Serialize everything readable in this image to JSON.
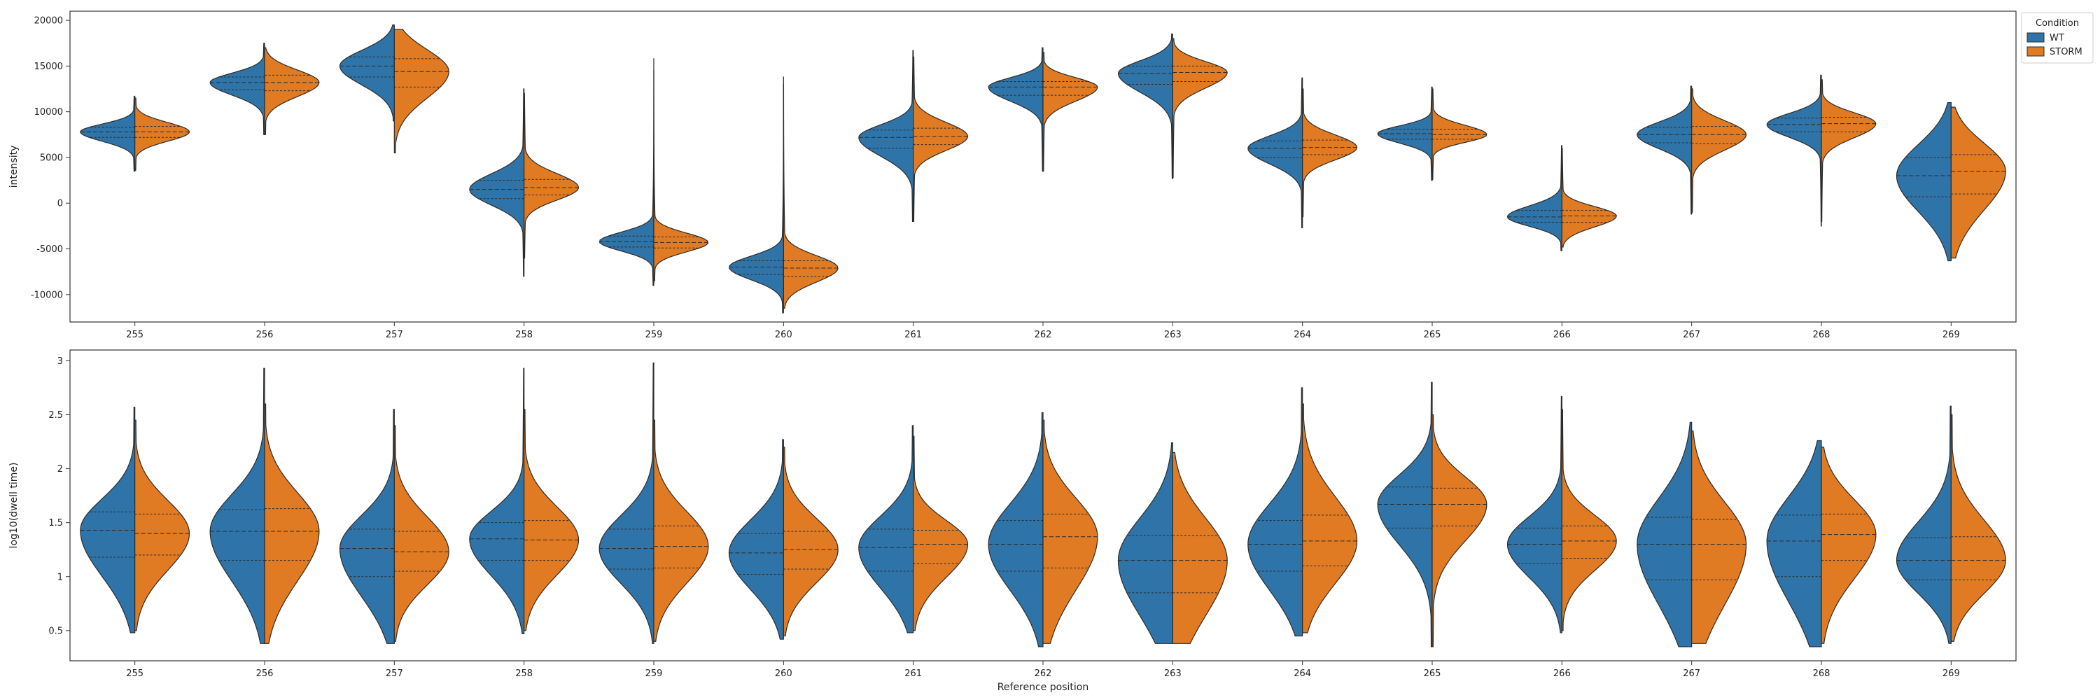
{
  "colors": {
    "wt": "#2f74a8",
    "storm": "#e07b24",
    "outline": "#2b2b2b",
    "frame": "#333333"
  },
  "legend": {
    "title": "Condition",
    "items": [
      "WT",
      "STORM"
    ]
  },
  "chart_data": [
    {
      "type": "violin",
      "split": true,
      "xlabel": "",
      "ylabel": "intensity",
      "ylim": [
        -13000,
        21000
      ],
      "yticks": [
        -10000,
        -5000,
        0,
        5000,
        10000,
        15000,
        20000
      ],
      "categories": [
        "255",
        "256",
        "257",
        "258",
        "259",
        "260",
        "261",
        "262",
        "263",
        "264",
        "265",
        "266",
        "267",
        "268",
        "269"
      ],
      "series": [
        {
          "name": "WT",
          "violins": [
            {
              "min": 3500,
              "max": 11700,
              "q1": 7200,
              "median": 7800,
              "q3": 8300
            },
            {
              "min": 7500,
              "max": 17500,
              "q1": 12400,
              "median": 13200,
              "q3": 13800
            },
            {
              "min": 9000,
              "max": 19500,
              "q1": 13800,
              "median": 15000,
              "q3": 16000
            },
            {
              "min": -8000,
              "max": 12500,
              "q1": 500,
              "median": 1500,
              "q3": 2500
            },
            {
              "min": -9000,
              "max": 15800,
              "q1": -4800,
              "median": -4200,
              "q3": -3600
            },
            {
              "min": -12000,
              "max": 13800,
              "q1": -7800,
              "median": -7000,
              "q3": -6300
            },
            {
              "min": -2000,
              "max": 16700,
              "q1": 6000,
              "median": 7200,
              "q3": 8000
            },
            {
              "min": 3500,
              "max": 17000,
              "q1": 11800,
              "median": 12700,
              "q3": 13300
            },
            {
              "min": 2700,
              "max": 18500,
              "q1": 13000,
              "median": 14200,
              "q3": 15000
            },
            {
              "min": -2700,
              "max": 13700,
              "q1": 5000,
              "median": 6000,
              "q3": 6800
            },
            {
              "min": 2500,
              "max": 12700,
              "q1": 7000,
              "median": 7600,
              "q3": 8100
            },
            {
              "min": -5200,
              "max": 6300,
              "q1": -2100,
              "median": -1500,
              "q3": -800
            },
            {
              "min": -1200,
              "max": 12800,
              "q1": 6600,
              "median": 7500,
              "q3": 8300
            },
            {
              "min": -2500,
              "max": 14000,
              "q1": 7800,
              "median": 8600,
              "q3": 9300
            },
            {
              "min": -6300,
              "max": 11000,
              "q1": 700,
              "median": 3000,
              "q3": 5000
            }
          ]
        },
        {
          "name": "STORM",
          "violins": [
            {
              "min": 3600,
              "max": 11500,
              "q1": 7200,
              "median": 7800,
              "q3": 8400
            },
            {
              "min": 7500,
              "max": 17000,
              "q1": 12300,
              "median": 13200,
              "q3": 14000
            },
            {
              "min": 5500,
              "max": 19000,
              "q1": 12700,
              "median": 14400,
              "q3": 15800
            },
            {
              "min": -6000,
              "max": 12000,
              "q1": 900,
              "median": 1700,
              "q3": 2600
            },
            {
              "min": -8500,
              "max": 14500,
              "q1": -4900,
              "median": -4300,
              "q3": -3700
            },
            {
              "min": -11500,
              "max": 13000,
              "q1": -8000,
              "median": -7100,
              "q3": -6300
            },
            {
              "min": -2000,
              "max": 16000,
              "q1": 6400,
              "median": 7300,
              "q3": 8200
            },
            {
              "min": 3500,
              "max": 16500,
              "q1": 11800,
              "median": 12700,
              "q3": 13300
            },
            {
              "min": 2800,
              "max": 18000,
              "q1": 13300,
              "median": 14300,
              "q3": 15000
            },
            {
              "min": -1500,
              "max": 12500,
              "q1": 5300,
              "median": 6100,
              "q3": 6900
            },
            {
              "min": 2600,
              "max": 12500,
              "q1": 7000,
              "median": 7500,
              "q3": 8100
            },
            {
              "min": -4800,
              "max": 6000,
              "q1": -2100,
              "median": -1400,
              "q3": -800
            },
            {
              "min": -1000,
              "max": 12500,
              "q1": 6500,
              "median": 7500,
              "q3": 8400
            },
            {
              "min": -2000,
              "max": 13500,
              "q1": 7800,
              "median": 8700,
              "q3": 9400
            },
            {
              "min": -6000,
              "max": 10500,
              "q1": 1000,
              "median": 3500,
              "q3": 5300
            }
          ]
        }
      ]
    },
    {
      "type": "violin",
      "split": true,
      "xlabel": "Reference position",
      "ylabel": "log10(dwell time)",
      "ylim": [
        0.22,
        3.1
      ],
      "yticks": [
        0.5,
        1.0,
        1.5,
        2.0,
        2.5,
        3.0
      ],
      "categories": [
        "255",
        "256",
        "257",
        "258",
        "259",
        "260",
        "261",
        "262",
        "263",
        "264",
        "265",
        "266",
        "267",
        "268",
        "269"
      ],
      "series": [
        {
          "name": "WT",
          "violins": [
            {
              "min": 0.48,
              "max": 2.57,
              "q1": 1.18,
              "median": 1.43,
              "q3": 1.6
            },
            {
              "min": 0.38,
              "max": 2.93,
              "q1": 1.15,
              "median": 1.42,
              "q3": 1.62
            },
            {
              "min": 0.38,
              "max": 2.55,
              "q1": 1.0,
              "median": 1.26,
              "q3": 1.44
            },
            {
              "min": 0.47,
              "max": 2.93,
              "q1": 1.15,
              "median": 1.35,
              "q3": 1.5
            },
            {
              "min": 0.38,
              "max": 2.98,
              "q1": 1.07,
              "median": 1.26,
              "q3": 1.44
            },
            {
              "min": 0.42,
              "max": 2.27,
              "q1": 1.02,
              "median": 1.22,
              "q3": 1.4
            },
            {
              "min": 0.48,
              "max": 2.4,
              "q1": 1.05,
              "median": 1.27,
              "q3": 1.44
            },
            {
              "min": 0.35,
              "max": 2.52,
              "q1": 1.05,
              "median": 1.3,
              "q3": 1.52
            },
            {
              "min": 0.38,
              "max": 2.24,
              "q1": 0.85,
              "median": 1.15,
              "q3": 1.38
            },
            {
              "min": 0.45,
              "max": 2.75,
              "q1": 1.05,
              "median": 1.3,
              "q3": 1.52
            },
            {
              "min": 0.35,
              "max": 2.8,
              "q1": 1.45,
              "median": 1.67,
              "q3": 1.83
            },
            {
              "min": 0.48,
              "max": 2.67,
              "q1": 1.12,
              "median": 1.3,
              "q3": 1.45
            },
            {
              "min": 0.35,
              "max": 2.43,
              "q1": 0.97,
              "median": 1.3,
              "q3": 1.55
            },
            {
              "min": 0.35,
              "max": 2.26,
              "q1": 1.0,
              "median": 1.33,
              "q3": 1.57
            },
            {
              "min": 0.38,
              "max": 2.58,
              "q1": 0.97,
              "median": 1.15,
              "q3": 1.36
            }
          ]
        },
        {
          "name": "STORM",
          "violins": [
            {
              "min": 0.5,
              "max": 2.45,
              "q1": 1.2,
              "median": 1.4,
              "q3": 1.58
            },
            {
              "min": 0.38,
              "max": 2.6,
              "q1": 1.15,
              "median": 1.42,
              "q3": 1.63
            },
            {
              "min": 0.4,
              "max": 2.4,
              "q1": 1.05,
              "median": 1.23,
              "q3": 1.42
            },
            {
              "min": 0.5,
              "max": 2.55,
              "q1": 1.15,
              "median": 1.34,
              "q3": 1.52
            },
            {
              "min": 0.4,
              "max": 2.45,
              "q1": 1.08,
              "median": 1.28,
              "q3": 1.47
            },
            {
              "min": 0.45,
              "max": 2.2,
              "q1": 1.07,
              "median": 1.25,
              "q3": 1.42
            },
            {
              "min": 0.5,
              "max": 2.3,
              "q1": 1.12,
              "median": 1.3,
              "q3": 1.43
            },
            {
              "min": 0.38,
              "max": 2.45,
              "q1": 1.08,
              "median": 1.37,
              "q3": 1.58
            },
            {
              "min": 0.38,
              "max": 2.15,
              "q1": 0.85,
              "median": 1.15,
              "q3": 1.38
            },
            {
              "min": 0.48,
              "max": 2.6,
              "q1": 1.1,
              "median": 1.33,
              "q3": 1.57
            },
            {
              "min": 0.35,
              "max": 2.5,
              "q1": 1.47,
              "median": 1.67,
              "q3": 1.82
            },
            {
              "min": 0.5,
              "max": 2.55,
              "q1": 1.17,
              "median": 1.33,
              "q3": 1.47
            },
            {
              "min": 0.38,
              "max": 2.35,
              "q1": 0.97,
              "median": 1.3,
              "q3": 1.53
            },
            {
              "min": 0.38,
              "max": 2.2,
              "q1": 1.15,
              "median": 1.39,
              "q3": 1.58
            },
            {
              "min": 0.4,
              "max": 2.5,
              "q1": 0.97,
              "median": 1.15,
              "q3": 1.37
            }
          ]
        }
      ]
    }
  ]
}
